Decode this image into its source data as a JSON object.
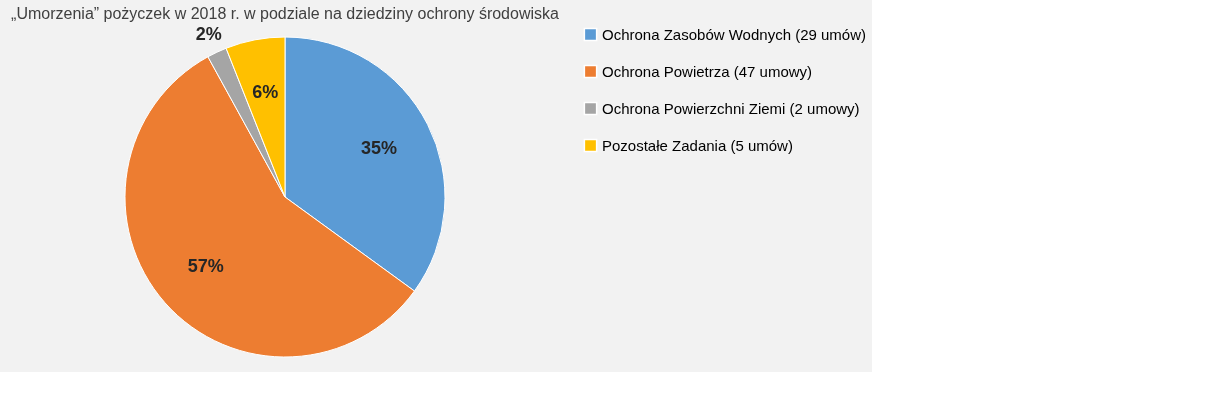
{
  "chart_data": {
    "type": "pie",
    "title": "„Umorzenia” pożyczek w 2018 r. w podziale na dziedziny ochrony środowiska",
    "categories": [
      "Ochrona Zasobów Wodnych (29 umów)",
      "Ochrona Powietrza (47 umowy)",
      "Ochrona Powierzchni Ziemi (2 umowy)",
      "Pozostałe Zadania (5 umów)"
    ],
    "values": [
      35,
      57,
      2,
      6
    ],
    "colors": [
      "#5b9bd5",
      "#ed7d31",
      "#a5a5a5",
      "#ffc000"
    ],
    "value_labels": [
      "35%",
      "57%",
      "2%",
      "6%"
    ],
    "legend": "right"
  }
}
